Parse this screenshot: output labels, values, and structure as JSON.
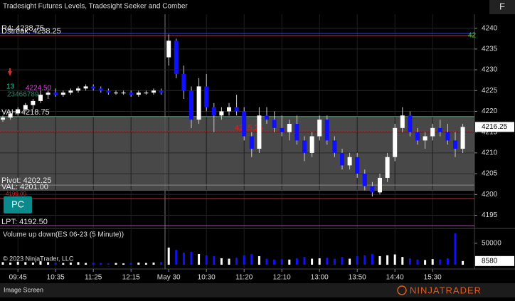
{
  "header": {
    "title": "Tradesight Futures Levels, Tradesight Seeker and Comber",
    "button": "F"
  },
  "chart_data": {
    "type": "candlestick",
    "categories": [
      null,
      null,
      "09:45",
      null,
      null,
      null,
      null,
      "10:35",
      null,
      null,
      null,
      null,
      "11:25",
      null,
      null,
      null,
      null,
      "12:15",
      null,
      null,
      null,
      null,
      "May 30",
      null,
      null,
      null,
      null,
      "10:30",
      null,
      null,
      null,
      null,
      "11:20",
      null,
      null,
      null,
      null,
      "12:10",
      null,
      null,
      null,
      null,
      "13:00",
      null,
      null,
      null,
      null,
      "13:50",
      null,
      null,
      null,
      null,
      "14:40",
      null,
      null,
      null,
      null,
      "15:30",
      null,
      null,
      null,
      null
    ],
    "open": [
      4218,
      4218.5,
      4219.5,
      4220.5,
      4221.5,
      4222.5,
      4224,
      4224.5,
      4224,
      4224.5,
      4225,
      4225.5,
      4226,
      4225.5,
      4225,
      4224.5,
      4224.5,
      4224.5,
      4224,
      4224.5,
      4224.5,
      4225,
      4233,
      4237,
      4229,
      4225,
      4218,
      4226,
      4221,
      4219,
      4220,
      4221,
      4220,
      4214,
      4211,
      4219,
      4218,
      4216,
      4215,
      4217,
      4213,
      4210,
      4214,
      4218,
      4213,
      4210,
      4207,
      4209,
      4205,
      4202,
      4200.5,
      4204,
      4209,
      4216,
      4219,
      4215,
      4213,
      4214,
      4216,
      4215,
      4213,
      4211
    ],
    "high": [
      4219,
      4220,
      4221,
      4222,
      4223,
      4225,
      4225,
      4225.5,
      4225,
      4225.5,
      4226,
      4226.5,
      4226.5,
      4226,
      4225.5,
      4225,
      4225,
      4225,
      4225,
      4225,
      4225.5,
      4225.5,
      4238.5,
      4237.5,
      4231,
      4226,
      4228,
      4229,
      4222,
      4221,
      4222,
      4224,
      4221,
      4215,
      4221,
      4221,
      4220,
      4219,
      4218,
      4219,
      4214,
      4215,
      4219,
      4219,
      4214,
      4211,
      4210,
      4210,
      4206,
      4203,
      4205,
      4210,
      4217,
      4221,
      4220,
      4216,
      4215,
      4217,
      4218,
      4217,
      4215,
      4217
    ],
    "low": [
      4217.5,
      4218,
      4219,
      4220,
      4220.5,
      4222,
      4223,
      4223.5,
      4223.5,
      4224,
      4224.5,
      4225,
      4225,
      4224.5,
      4224,
      4224,
      4224,
      4223.5,
      4223.5,
      4224,
      4224,
      4224,
      4231,
      4228,
      4223,
      4216,
      4217,
      4220,
      4215,
      4218,
      4219,
      4219,
      4213,
      4209,
      4210,
      4217,
      4215,
      4214,
      4213,
      4212,
      4208,
      4209,
      4213,
      4212,
      4209,
      4206,
      4206,
      4204,
      4201,
      4199.5,
      4200,
      4203,
      4208,
      4215,
      4214,
      4212,
      4211,
      4213,
      4214,
      4212,
      4209,
      4210
    ],
    "close": [
      4218.5,
      4219.5,
      4220.5,
      4221.5,
      4222.5,
      4224,
      4224.5,
      4224,
      4224.5,
      4225,
      4225.5,
      4226,
      4225.5,
      4225,
      4224.5,
      4224.5,
      4224.5,
      4224,
      4224.5,
      4224.5,
      4225,
      4224.5,
      4237,
      4229,
      4225,
      4218,
      4226,
      4221,
      4219,
      4220,
      4221,
      4220,
      4214,
      4211,
      4219,
      4218,
      4216,
      4215,
      4217,
      4213,
      4210,
      4214,
      4218,
      4213,
      4210,
      4207,
      4209,
      4205,
      4202,
      4200.5,
      4204,
      4209,
      4216,
      4219,
      4215,
      4213,
      4214,
      4216,
      4215,
      4213,
      4211,
      4216.25
    ],
    "up_color": "#ffffff",
    "down_color": "#1010ff",
    "ylim": [
      4192,
      4242
    ],
    "yticks": [
      4195,
      4200,
      4205,
      4210,
      4215,
      4220,
      4225,
      4230,
      4235,
      4240
    ],
    "levels": [
      {
        "label": "R4: 4238.75",
        "value": 4238.75,
        "color": "#3a3aff"
      },
      {
        "label": "Dstreak: 4238.25",
        "value": 4238.25,
        "color": "#d02020"
      },
      {
        "label": "VAH: 4218.75",
        "value": 4218.75,
        "color": "#20c060"
      },
      {
        "label": "4215.25",
        "value": 4215.25,
        "color": "#e02020"
      },
      {
        "label": "Pivot: 4202.25",
        "value": 4202.25,
        "color": "#888888"
      },
      {
        "label": "VAL: 4201.00",
        "value": 4201.0,
        "color": "#3a3aff"
      },
      {
        "label": "4199.00",
        "value": 4199.0,
        "color": "#e02020"
      },
      {
        "label": "LPT: 4192.50",
        "value": 4192.5,
        "color": "#c040c0"
      }
    ],
    "value_area_color": "#555555",
    "annotations": [
      {
        "text": "13",
        "color": "#20d0a0"
      },
      {
        "text": "4224.50",
        "color": "#e040e0"
      },
      {
        "text": "23466789",
        "color": "#2a8a6a"
      },
      {
        "text": "42",
        "color": "#30e030"
      }
    ],
    "volume": {
      "title": "Volume up down(ES 06-23 (5 Minute))",
      "ylim": [
        0,
        83000
      ],
      "yticks": [
        50000
      ],
      "values": [
        6000,
        5000,
        7000,
        6000,
        5000,
        8000,
        6000,
        5000,
        4000,
        5000,
        6000,
        4000,
        5000,
        4000,
        3000,
        4000,
        3000,
        4000,
        5000,
        4000,
        5000,
        6000,
        40000,
        35000,
        28000,
        30000,
        25000,
        22000,
        20000,
        15000,
        14000,
        16000,
        22000,
        25000,
        20000,
        14000,
        12000,
        13000,
        12000,
        15000,
        18000,
        14000,
        15000,
        16000,
        14000,
        18000,
        14000,
        20000,
        22000,
        25000,
        20000,
        22000,
        24000,
        18000,
        15000,
        12000,
        11000,
        13000,
        12000,
        15000,
        73000,
        8580
      ]
    },
    "grid": true
  },
  "overlay": {
    "button": "PC",
    "copyright": "© 2023 NinjaTrader, LLC"
  },
  "footer": {
    "left": "Image Screen",
    "logo": "NINJATRADER"
  }
}
